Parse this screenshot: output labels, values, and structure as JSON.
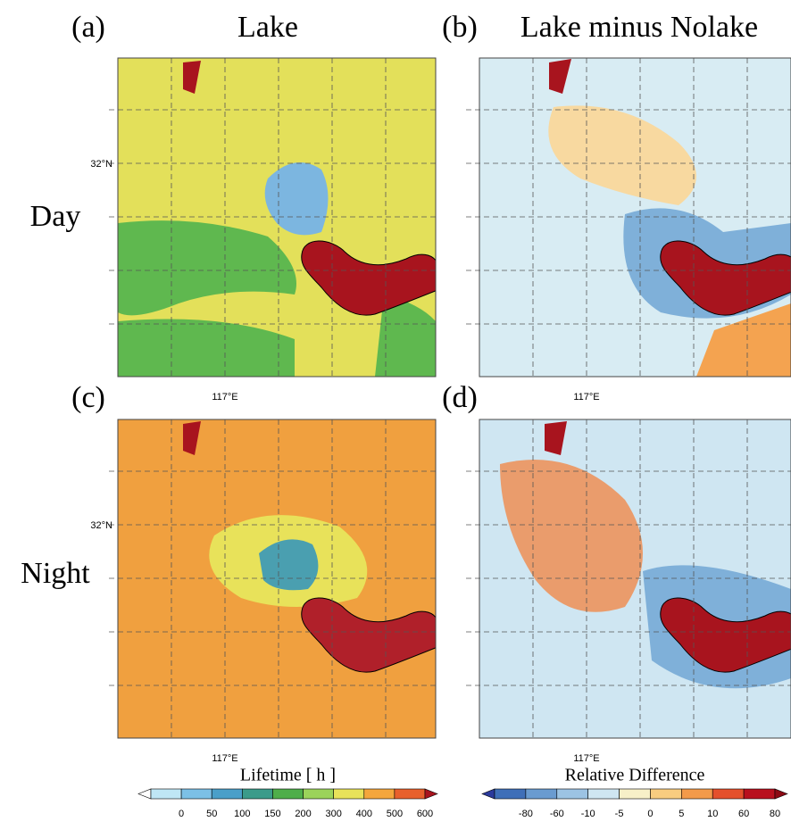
{
  "panels": [
    {
      "label": "(a)",
      "title": "Lake",
      "lat_label": "32°N",
      "lon_label": "117°E"
    },
    {
      "label": "(b)",
      "title": "Lake minus Nolake",
      "lon_label": "117°E"
    },
    {
      "label": "(c)",
      "lat_label": "32°N",
      "lon_label": "117°E"
    },
    {
      "label": "(d)",
      "lon_label": "117°E"
    }
  ],
  "rows": [
    "Day",
    "Night"
  ],
  "colorbars": [
    {
      "title": "Lifetime [ h ]",
      "ticks": [
        0,
        50,
        100,
        150,
        200,
        300,
        400,
        500,
        600
      ],
      "colors": [
        "#ffffff",
        "#bfe6f5",
        "#7cc0e6",
        "#4a9fc9",
        "#3b9b8a",
        "#4fae4a",
        "#9bd35a",
        "#e8e25a",
        "#f4a63c",
        "#e8602c",
        "#a8141e"
      ]
    },
    {
      "title": "Relative Difference",
      "ticks": [
        -80,
        -60,
        -10,
        -5,
        0,
        5,
        10,
        60,
        80
      ],
      "colors": [
        "#2b3a9c",
        "#3f6fb8",
        "#6a9bd0",
        "#9cc3e3",
        "#cfe6f2",
        "#f7f0c8",
        "#f8cc80",
        "#f39a4a",
        "#e4502c",
        "#b8101e",
        "#8c0a14"
      ]
    }
  ]
}
